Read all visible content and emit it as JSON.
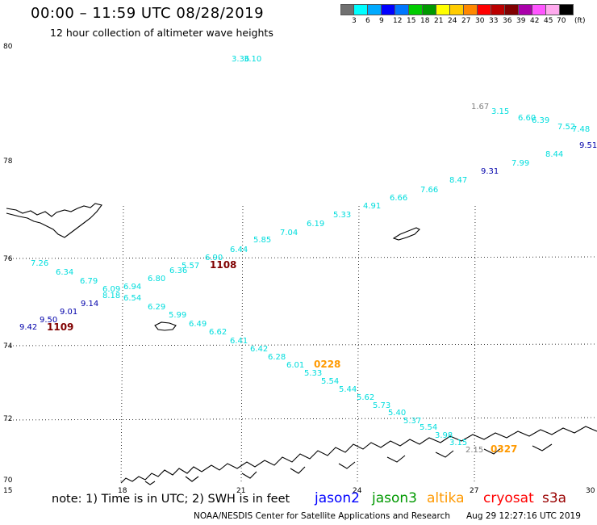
{
  "header": {
    "title": "00:00 – 11:59 UTC 08/28/2019",
    "subtitle": "12 hour collection of altimeter wave heights"
  },
  "scale": {
    "colors": [
      "#707070",
      "#00ffff",
      "#00aaff",
      "#0000ff",
      "#0077ff",
      "#00cc00",
      "#009900",
      "#ffff00",
      "#ffcc00",
      "#ff8800",
      "#ff0000",
      "#bb0000",
      "#800000",
      "#aa00aa",
      "#ff55ff",
      "#ffaaee",
      "#000000"
    ],
    "labels": [
      "3",
      "6",
      "9",
      "12",
      "15",
      "18",
      "21",
      "24",
      "27",
      "30",
      "33",
      "36",
      "39",
      "42",
      "45",
      "70",
      "(ft)"
    ]
  },
  "axes": {
    "lat_labels": [
      "80",
      "78",
      "76",
      "74",
      "72",
      "70"
    ],
    "lon_labels": [
      "15",
      "18",
      "21",
      "24",
      "27",
      "30"
    ]
  },
  "footer": {
    "note": "note: 1) Time is in UTC; 2) SWH is in feet",
    "satellites": [
      {
        "name": "jason2",
        "color": "#0000ff"
      },
      {
        "name": "jason3",
        "color": "#009900"
      },
      {
        "name": "altika",
        "color": "#ff9900"
      },
      {
        "name": "cryosat",
        "color": "#ff0000"
      },
      {
        "name": "s3a",
        "color": "#990000"
      }
    ],
    "credit": "NOAA/NESDIS Center for Satellite Applications and Research",
    "timestamp": "Aug 29 12:27:16 UTC 2019"
  },
  "observations": [
    {
      "v": "3.36",
      "c": "#00dddd"
    },
    {
      "v": "3.10",
      "c": "#00dddd"
    },
    {
      "v": "1.67",
      "c": "#808080"
    },
    {
      "v": "3.15",
      "c": "#00dddd"
    },
    {
      "v": "6.60",
      "c": "#00dddd"
    },
    {
      "v": "6.39",
      "c": "#00dddd"
    },
    {
      "v": "7.52",
      "c": "#00dddd"
    },
    {
      "v": "7.48",
      "c": "#00dddd"
    },
    {
      "v": "9.51",
      "c": "#0000aa"
    },
    {
      "v": "8.44",
      "c": "#00dddd"
    },
    {
      "v": "7.99",
      "c": "#00dddd"
    },
    {
      "v": "9.31",
      "c": "#0000aa"
    },
    {
      "v": "8.47",
      "c": "#00dddd"
    },
    {
      "v": "7.66",
      "c": "#00dddd"
    },
    {
      "v": "6.66",
      "c": "#00dddd"
    },
    {
      "v": "4.91",
      "c": "#00dddd"
    },
    {
      "v": "5.33",
      "c": "#00dddd"
    },
    {
      "v": "6.19",
      "c": "#00dddd"
    },
    {
      "v": "7.04",
      "c": "#00dddd"
    },
    {
      "v": "5.85",
      "c": "#00dddd"
    },
    {
      "v": "6.44",
      "c": "#00dddd"
    },
    {
      "v": "6.90",
      "c": "#00dddd"
    },
    {
      "v": "1108",
      "c": "#800000"
    },
    {
      "v": "5.57",
      "c": "#00dddd"
    },
    {
      "v": "6.36",
      "c": "#00dddd"
    },
    {
      "v": "6.80",
      "c": "#00dddd"
    },
    {
      "v": "6.94",
      "c": "#00dddd"
    },
    {
      "v": "6.09",
      "c": "#00dddd"
    },
    {
      "v": "8.18",
      "c": "#00dddd"
    },
    {
      "v": "6.54",
      "c": "#00dddd"
    },
    {
      "v": "6.79",
      "c": "#00dddd"
    },
    {
      "v": "6.34",
      "c": "#00dddd"
    },
    {
      "v": "7.26",
      "c": "#00dddd"
    },
    {
      "v": "9.14",
      "c": "#0000aa"
    },
    {
      "v": "9.01",
      "c": "#0000aa"
    },
    {
      "v": "9.50",
      "c": "#0000aa"
    },
    {
      "v": "9.42",
      "c": "#0000aa"
    },
    {
      "v": "1109",
      "c": "#800000"
    },
    {
      "v": "6.29",
      "c": "#00dddd"
    },
    {
      "v": "5.99",
      "c": "#00dddd"
    },
    {
      "v": "6.49",
      "c": "#00dddd"
    },
    {
      "v": "6.62",
      "c": "#00dddd"
    },
    {
      "v": "6.41",
      "c": "#00dddd"
    },
    {
      "v": "6.42",
      "c": "#00dddd"
    },
    {
      "v": "6.28",
      "c": "#00dddd"
    },
    {
      "v": "6.01",
      "c": "#00dddd"
    },
    {
      "v": "0228",
      "c": "#ff9900"
    },
    {
      "v": "5.33",
      "c": "#00dddd"
    },
    {
      "v": "5.54",
      "c": "#00dddd"
    },
    {
      "v": "5.44",
      "c": "#00dddd"
    },
    {
      "v": "5.62",
      "c": "#00dddd"
    },
    {
      "v": "5.73",
      "c": "#00dddd"
    },
    {
      "v": "5.40",
      "c": "#00dddd"
    },
    {
      "v": "5.37",
      "c": "#00dddd"
    },
    {
      "v": "5.54",
      "c": "#00dddd"
    },
    {
      "v": "3.98",
      "c": "#00dddd"
    },
    {
      "v": "3.15",
      "c": "#00dddd"
    },
    {
      "v": "2.15",
      "c": "#808080"
    },
    {
      "v": "0327",
      "c": "#ff9900"
    }
  ]
}
